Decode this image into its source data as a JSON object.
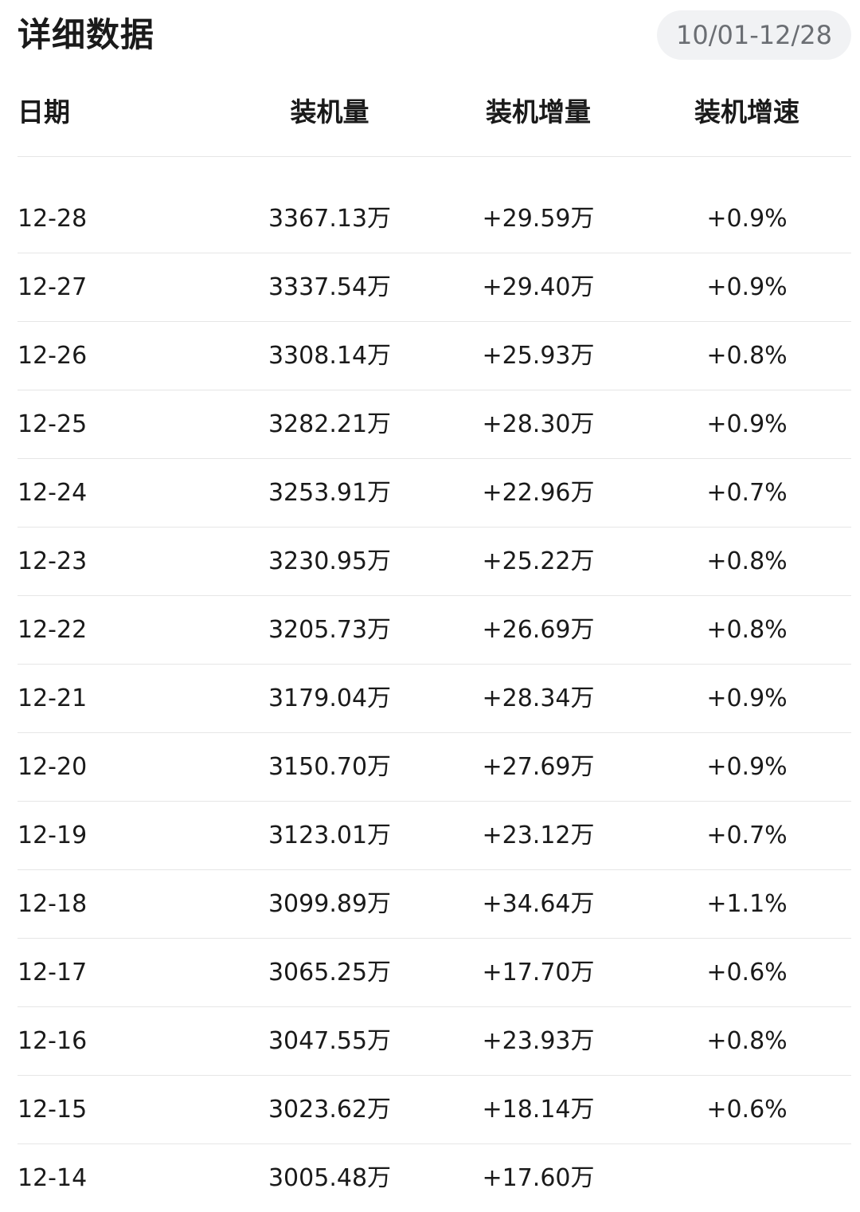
{
  "header": {
    "title": "详细数据",
    "date_range": "10/01-12/28"
  },
  "table": {
    "columns": [
      "日期",
      "装机量",
      "装机增量",
      "装机增速"
    ],
    "rows": [
      [
        "12-28",
        "3367.13万",
        "+29.59万",
        "+0.9%"
      ],
      [
        "12-27",
        "3337.54万",
        "+29.40万",
        "+0.9%"
      ],
      [
        "12-26",
        "3308.14万",
        "+25.93万",
        "+0.8%"
      ],
      [
        "12-25",
        "3282.21万",
        "+28.30万",
        "+0.9%"
      ],
      [
        "12-24",
        "3253.91万",
        "+22.96万",
        "+0.7%"
      ],
      [
        "12-23",
        "3230.95万",
        "+25.22万",
        "+0.8%"
      ],
      [
        "12-22",
        "3205.73万",
        "+26.69万",
        "+0.8%"
      ],
      [
        "12-21",
        "3179.04万",
        "+28.34万",
        "+0.9%"
      ],
      [
        "12-20",
        "3150.70万",
        "+27.69万",
        "+0.9%"
      ],
      [
        "12-19",
        "3123.01万",
        "+23.12万",
        "+0.7%"
      ],
      [
        "12-18",
        "3099.89万",
        "+34.64万",
        "+1.1%"
      ],
      [
        "12-17",
        "3065.25万",
        "+17.70万",
        "+0.6%"
      ],
      [
        "12-16",
        "3047.55万",
        "+23.93万",
        "+0.8%"
      ],
      [
        "12-15",
        "3023.62万",
        "+18.14万",
        "+0.6%"
      ],
      [
        "12-14",
        "3005.48万",
        "+17.60万",
        ""
      ]
    ]
  },
  "watermark": ""
}
